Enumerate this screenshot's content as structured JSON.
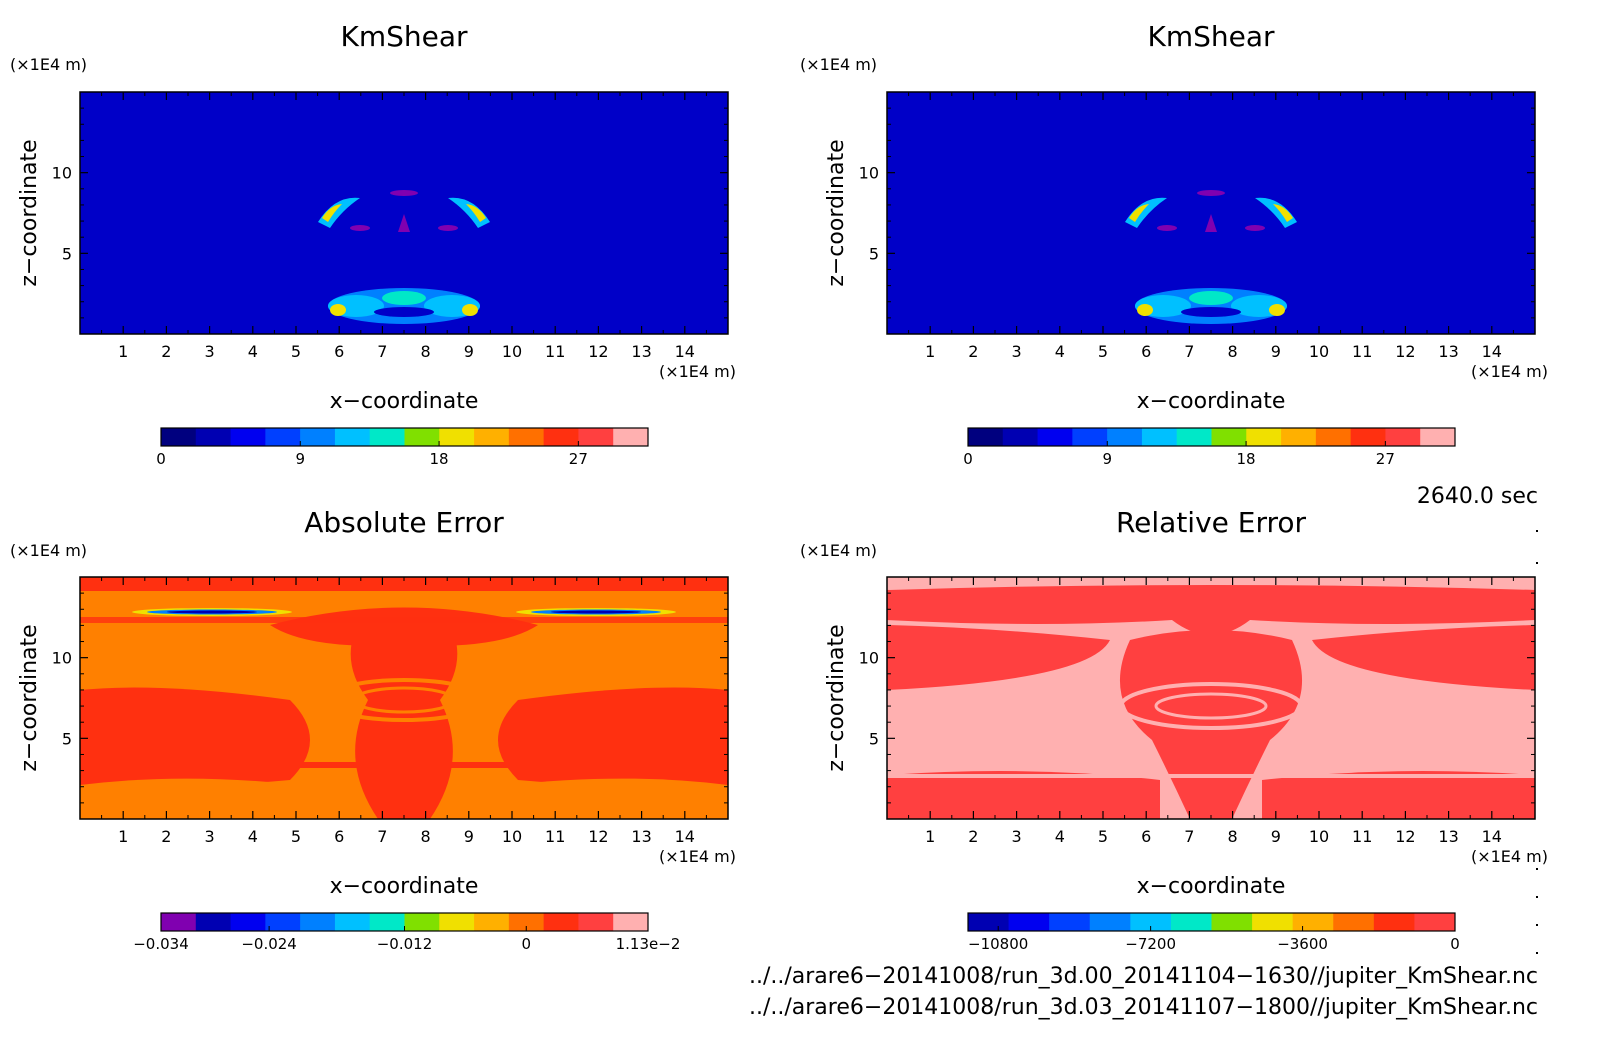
{
  "chart_data": [
    {
      "type": "heatmap",
      "title": "KmShear",
      "xlabel": "x−coordinate",
      "ylabel": "z−coordinate",
      "x_unit": "(×1E4 m)",
      "y_unit": "(×1E4 m)",
      "xlim": [
        0,
        15
      ],
      "ylim": [
        0,
        15
      ],
      "x_ticks": [
        "1",
        "2",
        "3",
        "4",
        "5",
        "6",
        "7",
        "8",
        "9",
        "10",
        "11",
        "12",
        "13",
        "14"
      ],
      "y_ticks": [
        "5",
        "10"
      ],
      "colorbar": {
        "tick_labels": [
          "0",
          "9",
          "18",
          "27"
        ],
        "colors": [
          "#00007f",
          "#0000b2",
          "#0000f0",
          "#0040ff",
          "#0080ff",
          "#00c0ff",
          "#00e8c8",
          "#80e000",
          "#f0e000",
          "#ffb000",
          "#ff7000",
          "#ff3010",
          "#ff4040",
          "#ffb0b0"
        ]
      }
    },
    {
      "type": "heatmap",
      "title": "KmShear",
      "xlabel": "x−coordinate",
      "ylabel": "z−coordinate",
      "x_unit": "(×1E4 m)",
      "y_unit": "(×1E4 m)",
      "xlim": [
        0,
        15
      ],
      "ylim": [
        0,
        15
      ],
      "x_ticks": [
        "1",
        "2",
        "3",
        "4",
        "5",
        "6",
        "7",
        "8",
        "9",
        "10",
        "11",
        "12",
        "13",
        "14"
      ],
      "y_ticks": [
        "5",
        "10"
      ],
      "colorbar": {
        "tick_labels": [
          "0",
          "9",
          "18",
          "27"
        ],
        "colors": [
          "#00007f",
          "#0000b2",
          "#0000f0",
          "#0040ff",
          "#0080ff",
          "#00c0ff",
          "#00e8c8",
          "#80e000",
          "#f0e000",
          "#ffb000",
          "#ff7000",
          "#ff3010",
          "#ff4040",
          "#ffb0b0"
        ]
      }
    },
    {
      "type": "heatmap",
      "title": "Absolute Error",
      "xlabel": "x−coordinate",
      "ylabel": "z−coordinate",
      "x_unit": "(×1E4 m)",
      "y_unit": "(×1E4 m)",
      "xlim": [
        0,
        15
      ],
      "ylim": [
        0,
        15
      ],
      "x_ticks": [
        "1",
        "2",
        "3",
        "4",
        "5",
        "6",
        "7",
        "8",
        "9",
        "10",
        "11",
        "12",
        "13",
        "14"
      ],
      "y_ticks": [
        "5",
        "10"
      ],
      "colorbar": {
        "tick_labels": [
          "−0.034",
          "−0.024",
          "−0.012",
          "0",
          "1.13e−2"
        ],
        "colors": [
          "#8000b0",
          "#0000b2",
          "#0000f0",
          "#0040ff",
          "#0080ff",
          "#00c0ff",
          "#00e8c8",
          "#80e000",
          "#f0e000",
          "#ffb000",
          "#ff7000",
          "#ff3010",
          "#ff4040",
          "#ffb0b0"
        ]
      }
    },
    {
      "type": "heatmap",
      "title": "Relative Error",
      "xlabel": "x−coordinate",
      "ylabel": "z−coordinate",
      "x_unit": "(×1E4 m)",
      "y_unit": "(×1E4 m)",
      "xlim": [
        0,
        15
      ],
      "ylim": [
        0,
        15
      ],
      "x_ticks": [
        "1",
        "2",
        "3",
        "4",
        "5",
        "6",
        "7",
        "8",
        "9",
        "10",
        "11",
        "12",
        "13",
        "14"
      ],
      "y_ticks": [
        "5",
        "10"
      ],
      "colorbar": {
        "tick_labels": [
          "−10800",
          "−7200",
          "−3600",
          "0"
        ],
        "colors": [
          "#0000b2",
          "#0000f0",
          "#0040ff",
          "#0080ff",
          "#00c0ff",
          "#00e8c8",
          "#80e000",
          "#f0e000",
          "#ffb000",
          "#ff7000",
          "#ff3010",
          "#ff4040"
        ]
      }
    }
  ],
  "annotations": {
    "time": "2640.0 sec",
    "file1": "../../arare6−20141008/run_3d.00_20141104−1630//jupiter_KmShear.nc",
    "file2": "../../arare6−20141008/run_3d.03_20141107−1800//jupiter_KmShear.nc"
  },
  "field_colors": {
    "blue_bg": "#0000c8",
    "purple": "#8000b0",
    "orange": "#ff8000",
    "red_orange": "#ff3010",
    "red": "#ff4040",
    "pink": "#ffb0b0"
  }
}
